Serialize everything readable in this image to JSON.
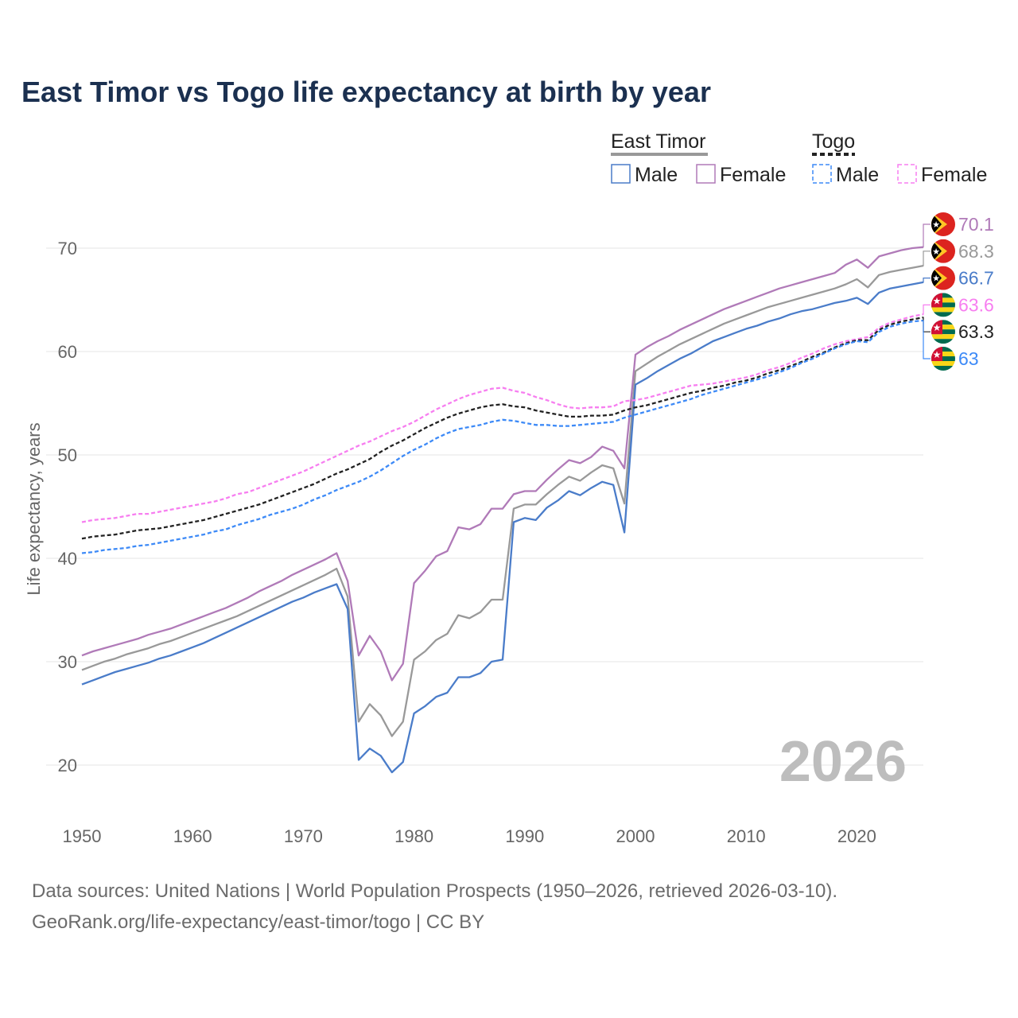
{
  "title": "East Timor vs Togo life expectancy at birth by year",
  "footer": {
    "line1": "Data sources: United Nations | World Population Prospects (1950–2026, retrieved 2026-03-10).",
    "line2": "GeoRank.org/life-expectancy/east-timor/togo | CC BY"
  },
  "watermark": "2026",
  "chart_data": {
    "type": "line",
    "title": "East Timor vs Togo life expectancy at birth by year",
    "xlabel": "",
    "ylabel": "Life expectancy, years",
    "xlim": [
      1950,
      2026
    ],
    "ylim": [
      17,
      72
    ],
    "xticks": [
      "1950",
      "1960",
      "1970",
      "1980",
      "1990",
      "2000",
      "2010",
      "2020"
    ],
    "yticks": [
      "20",
      "30",
      "40",
      "50",
      "60",
      "70"
    ],
    "grid": true,
    "legend_placement": "top-right",
    "legend_groups": [
      {
        "country": "East Timor",
        "color": "#999999",
        "dash": false,
        "items": [
          "Male",
          "Female"
        ]
      },
      {
        "country": "Togo",
        "color": "#222222",
        "dash": true,
        "items": [
          "Male",
          "Female"
        ]
      }
    ],
    "x_start": 1950,
    "series": [
      {
        "name": "East Timor Female",
        "country": "East Timor",
        "color": "#b07ab8",
        "dash": false,
        "end_label": "70.1",
        "values": [
          30.6,
          31.0,
          31.3,
          31.6,
          31.9,
          32.2,
          32.6,
          32.9,
          33.2,
          33.6,
          34.0,
          34.4,
          34.8,
          35.2,
          35.7,
          36.2,
          36.8,
          37.3,
          37.8,
          38.4,
          38.9,
          39.4,
          39.9,
          40.5,
          37.8,
          30.6,
          32.5,
          31.0,
          28.2,
          29.8,
          37.6,
          38.8,
          40.2,
          40.7,
          43.0,
          42.8,
          43.3,
          44.8,
          44.8,
          46.2,
          46.5,
          46.5,
          47.6,
          48.6,
          49.5,
          49.2,
          49.8,
          50.8,
          50.4,
          48.7,
          59.7,
          60.4,
          61.0,
          61.5,
          62.1,
          62.6,
          63.1,
          63.6,
          64.1,
          64.5,
          64.9,
          65.3,
          65.7,
          66.1,
          66.4,
          66.7,
          67.0,
          67.3,
          67.6,
          68.4,
          68.9,
          68.1,
          69.2,
          69.5,
          69.8,
          70.0,
          70.1
        ]
      },
      {
        "name": "East Timor Total",
        "country": "East Timor",
        "color": "#999999",
        "dash": false,
        "end_label": "68.3",
        "values": [
          29.2,
          29.6,
          30.0,
          30.3,
          30.7,
          31.0,
          31.3,
          31.7,
          32.0,
          32.4,
          32.8,
          33.2,
          33.6,
          34.0,
          34.4,
          34.9,
          35.4,
          35.9,
          36.4,
          36.9,
          37.4,
          37.9,
          38.4,
          39.0,
          36.3,
          24.2,
          25.9,
          24.8,
          22.8,
          24.2,
          30.2,
          31.0,
          32.1,
          32.7,
          34.5,
          34.2,
          34.8,
          36.0,
          36.0,
          44.8,
          45.2,
          45.2,
          46.2,
          47.1,
          47.9,
          47.5,
          48.3,
          49.0,
          48.7,
          45.3,
          58.1,
          58.8,
          59.5,
          60.1,
          60.7,
          61.2,
          61.7,
          62.2,
          62.7,
          63.1,
          63.5,
          63.9,
          64.3,
          64.6,
          64.9,
          65.2,
          65.5,
          65.8,
          66.1,
          66.5,
          67.0,
          66.2,
          67.4,
          67.7,
          67.9,
          68.1,
          68.3
        ]
      },
      {
        "name": "East Timor Male",
        "country": "East Timor",
        "color": "#4a7cc9",
        "dash": false,
        "end_label": "66.7",
        "values": [
          27.8,
          28.2,
          28.6,
          29.0,
          29.3,
          29.6,
          29.9,
          30.3,
          30.6,
          31.0,
          31.4,
          31.8,
          32.3,
          32.8,
          33.3,
          33.8,
          34.3,
          34.8,
          35.3,
          35.8,
          36.2,
          36.7,
          37.1,
          37.5,
          35.1,
          20.5,
          21.6,
          20.9,
          19.3,
          20.3,
          25.0,
          25.7,
          26.6,
          27.0,
          28.5,
          28.5,
          28.9,
          30.0,
          30.2,
          43.5,
          43.9,
          43.7,
          44.9,
          45.6,
          46.5,
          46.1,
          46.8,
          47.4,
          47.1,
          42.5,
          56.8,
          57.4,
          58.1,
          58.7,
          59.3,
          59.8,
          60.4,
          61.0,
          61.4,
          61.8,
          62.2,
          62.5,
          62.9,
          63.2,
          63.6,
          63.9,
          64.1,
          64.4,
          64.7,
          64.9,
          65.2,
          64.6,
          65.7,
          66.1,
          66.3,
          66.5,
          66.7
        ]
      },
      {
        "name": "Togo Female",
        "country": "Togo",
        "color": "#f77ef0",
        "dash": true,
        "end_label": "63.6",
        "values": [
          43.5,
          43.7,
          43.8,
          43.9,
          44.1,
          44.3,
          44.3,
          44.5,
          44.7,
          44.9,
          45.1,
          45.3,
          45.5,
          45.8,
          46.2,
          46.4,
          46.8,
          47.2,
          47.6,
          48.0,
          48.4,
          48.9,
          49.4,
          49.9,
          50.4,
          50.9,
          51.3,
          51.8,
          52.3,
          52.7,
          53.2,
          53.8,
          54.4,
          54.9,
          55.4,
          55.8,
          56.1,
          56.4,
          56.5,
          56.2,
          56.0,
          55.6,
          55.3,
          54.9,
          54.6,
          54.5,
          54.6,
          54.6,
          54.7,
          55.2,
          55.3,
          55.5,
          55.8,
          56.1,
          56.4,
          56.7,
          56.8,
          56.9,
          57.1,
          57.3,
          57.5,
          57.8,
          58.2,
          58.5,
          58.9,
          59.4,
          59.8,
          60.3,
          60.7,
          61.0,
          61.2,
          61.4,
          62.3,
          62.8,
          63.1,
          63.4,
          63.6
        ]
      },
      {
        "name": "Togo Total",
        "country": "Togo",
        "color": "#222222",
        "dash": true,
        "end_label": "63.3",
        "values": [
          41.9,
          42.1,
          42.2,
          42.3,
          42.5,
          42.7,
          42.8,
          42.9,
          43.1,
          43.3,
          43.5,
          43.7,
          44.0,
          44.3,
          44.6,
          44.9,
          45.2,
          45.6,
          46.0,
          46.4,
          46.8,
          47.2,
          47.7,
          48.2,
          48.6,
          49.1,
          49.6,
          50.3,
          50.9,
          51.4,
          52.0,
          52.6,
          53.1,
          53.6,
          54.0,
          54.3,
          54.6,
          54.8,
          54.9,
          54.7,
          54.6,
          54.3,
          54.1,
          53.9,
          53.7,
          53.7,
          53.8,
          53.8,
          53.9,
          54.3,
          54.6,
          54.8,
          55.1,
          55.4,
          55.7,
          56.0,
          56.2,
          56.5,
          56.7,
          57.0,
          57.2,
          57.5,
          57.9,
          58.2,
          58.6,
          59.0,
          59.5,
          59.9,
          60.4,
          60.8,
          61.1,
          61.1,
          62.1,
          62.6,
          62.9,
          63.1,
          63.3
        ]
      },
      {
        "name": "Togo Male",
        "country": "Togo",
        "color": "#3d8af7",
        "dash": true,
        "end_label": "63",
        "values": [
          40.5,
          40.6,
          40.8,
          40.9,
          41.0,
          41.2,
          41.3,
          41.5,
          41.7,
          41.9,
          42.1,
          42.3,
          42.6,
          42.8,
          43.2,
          43.5,
          43.8,
          44.2,
          44.5,
          44.8,
          45.2,
          45.7,
          46.1,
          46.6,
          47.0,
          47.4,
          47.9,
          48.5,
          49.2,
          49.9,
          50.5,
          51.0,
          51.6,
          52.1,
          52.5,
          52.7,
          52.9,
          53.2,
          53.4,
          53.3,
          53.1,
          52.9,
          52.9,
          52.8,
          52.8,
          52.9,
          53.0,
          53.1,
          53.2,
          53.6,
          53.9,
          54.2,
          54.5,
          54.8,
          55.1,
          55.4,
          55.8,
          56.1,
          56.4,
          56.7,
          57.0,
          57.3,
          57.6,
          58.0,
          58.4,
          58.9,
          59.3,
          59.8,
          60.3,
          60.7,
          61.0,
          60.9,
          61.9,
          62.4,
          62.7,
          62.9,
          63.0
        ]
      }
    ]
  }
}
